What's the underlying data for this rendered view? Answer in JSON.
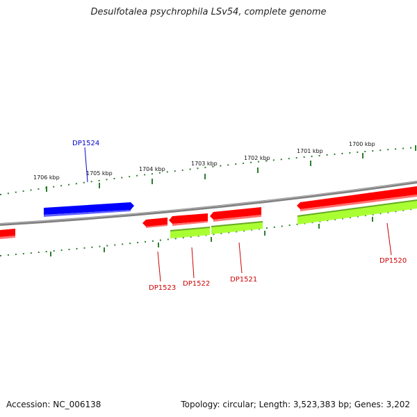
{
  "title": "Desulfotalea psychrophila LSv54, complete genome",
  "footer": {
    "accession": "Accession: NC_006138",
    "summary": "Topology: circular; Length: 3,523,383 bp; Genes: 3,202"
  },
  "colors": {
    "forward_gene": "#0000ff",
    "reverse_gene": "#ff0000",
    "reverse_gene_secondary": "#aaff33",
    "ticks": "#2d7d2d",
    "backbone": "#808080"
  },
  "scale_labels": [
    "1700 kbp",
    "1701 kbp",
    "1702 kbp",
    "1703 kbp",
    "1704 kbp",
    "1705 kbp",
    "1706 kbp"
  ],
  "gene_labels": [
    {
      "name": "DP1524",
      "strand": "forward"
    },
    {
      "name": "DP1523",
      "strand": "reverse"
    },
    {
      "name": "DP1522",
      "strand": "reverse"
    },
    {
      "name": "DP1521",
      "strand": "reverse"
    },
    {
      "name": "DP1520",
      "strand": "reverse"
    }
  ]
}
